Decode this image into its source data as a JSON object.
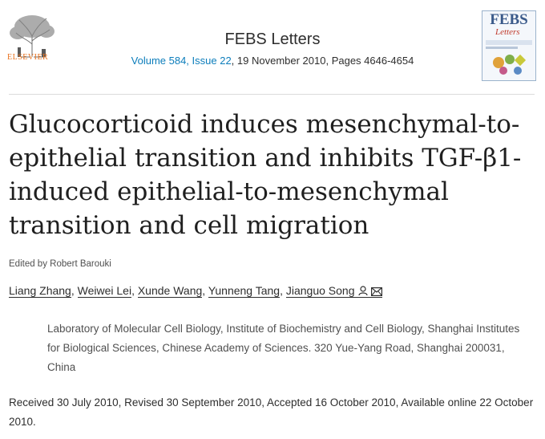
{
  "publisher": {
    "name": "ELSEVIER"
  },
  "journal": {
    "title": "FEBS Letters",
    "issue_link": "Volume 584, Issue 22",
    "issue_rest": ", 19 November 2010, Pages 4646-4654",
    "cover_title": "FEBS",
    "cover_subtitle": "Letters"
  },
  "article": {
    "title": "Glucocorticoid induces mesenchymal-to-epithelial transition and inhibits TGF-β1-induced epithelial-to-mesenchymal transition and cell migration",
    "edited_by": "Edited by Robert Barouki",
    "authors": [
      "Liang Zhang",
      "Weiwei Lei",
      "Xunde Wang",
      "Yunneng Tang",
      "Jianguo Song"
    ],
    "affiliation": "Laboratory of Molecular Cell Biology, Institute of Biochemistry and Cell Biology, Shanghai Institutes for Biological Sciences, Chinese Academy of Sciences. 320 Yue-Yang Road, Shanghai 200031, China",
    "dates": "Received 30 July 2010, Revised 30 September 2010, Accepted 16 October 2010, Available online 22 October 2010."
  },
  "icons": [
    "person-icon",
    "mail-icon"
  ],
  "colors": {
    "link": "#0c7dbb",
    "elsevier_orange": "#e9711c"
  }
}
